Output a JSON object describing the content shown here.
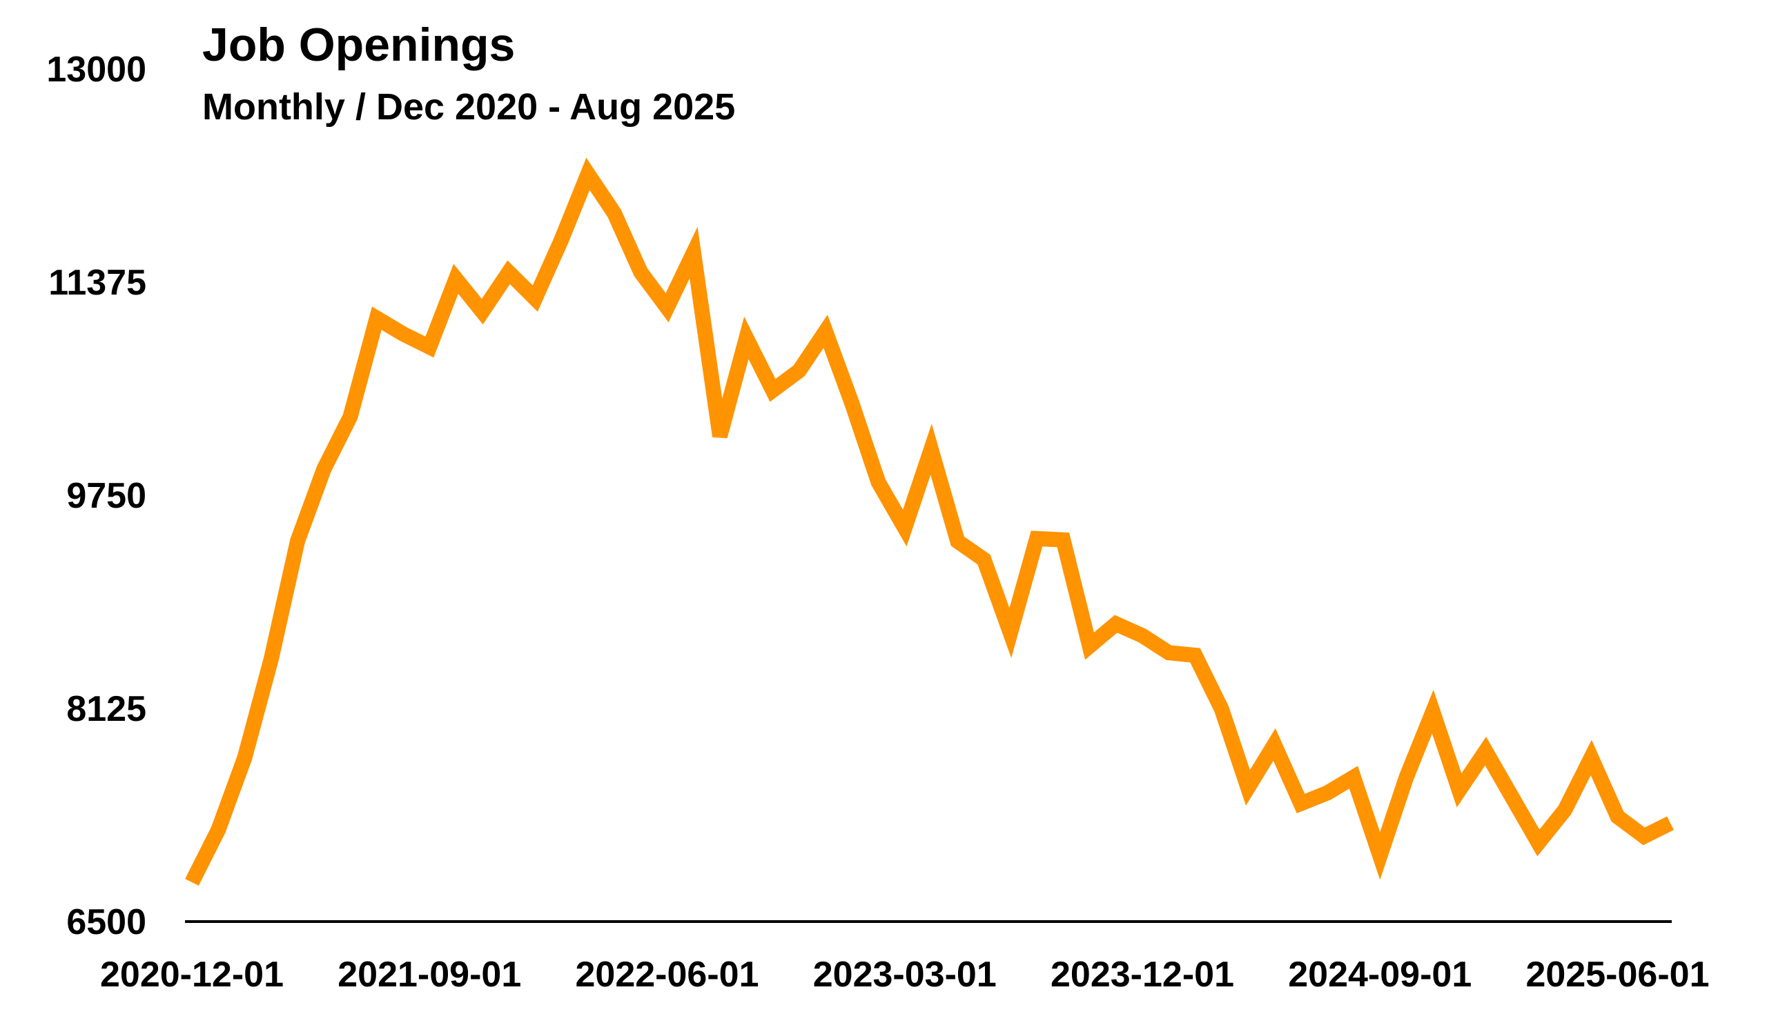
{
  "chart_data": {
    "type": "line",
    "title": "Job Openings",
    "subtitle": "Monthly / Dec 2020 - Aug 2025",
    "xlabel": "",
    "ylabel": "",
    "ylim": [
      6500,
      13000
    ],
    "yticks": [
      "13000",
      "11375",
      "9750",
      "8125",
      "6500"
    ],
    "xticks": [
      "2020-12-01",
      "2021-09-01",
      "2022-06-01",
      "2023-03-01",
      "2023-12-01",
      "2024-09-01",
      "2025-06-01"
    ],
    "grid": false,
    "legend": "none",
    "line_color": "#ff9300",
    "x": [
      "2020-12-01",
      "2021-01-01",
      "2021-02-01",
      "2021-03-01",
      "2021-04-01",
      "2021-05-01",
      "2021-06-01",
      "2021-07-01",
      "2021-08-01",
      "2021-09-01",
      "2021-10-01",
      "2021-11-01",
      "2021-12-01",
      "2022-01-01",
      "2022-02-01",
      "2022-03-01",
      "2022-04-01",
      "2022-05-01",
      "2022-06-01",
      "2022-07-01",
      "2022-08-01",
      "2022-09-01",
      "2022-10-01",
      "2022-11-01",
      "2022-12-01",
      "2023-01-01",
      "2023-02-01",
      "2023-03-01",
      "2023-04-01",
      "2023-05-01",
      "2023-06-01",
      "2023-07-01",
      "2023-08-01",
      "2023-09-01",
      "2023-10-01",
      "2023-11-01",
      "2023-12-01",
      "2024-01-01",
      "2024-02-01",
      "2024-03-01",
      "2024-04-01",
      "2024-05-01",
      "2024-06-01",
      "2024-07-01",
      "2024-08-01",
      "2024-09-01",
      "2024-10-01",
      "2024-11-01",
      "2024-12-01",
      "2025-01-01",
      "2025-02-01",
      "2025-03-01",
      "2025-04-01",
      "2025-05-01",
      "2025-06-01",
      "2025-07-01",
      "2025-08-01"
    ],
    "values": [
      6800,
      7200,
      7750,
      8500,
      9400,
      9950,
      10350,
      11100,
      10980,
      10880,
      11400,
      11150,
      11450,
      11250,
      11700,
      12200,
      11900,
      11450,
      11180,
      11600,
      10200,
      10950,
      10550,
      10700,
      11000,
      10450,
      9850,
      9500,
      10100,
      9400,
      9260,
      8700,
      9420,
      9410,
      8600,
      8770,
      8680,
      8550,
      8530,
      8120,
      7520,
      7850,
      7400,
      7480,
      7600,
      7000,
      7600,
      8100,
      7500,
      7800,
      7450,
      7100,
      7350,
      7750,
      7300,
      7150,
      7250
    ]
  }
}
